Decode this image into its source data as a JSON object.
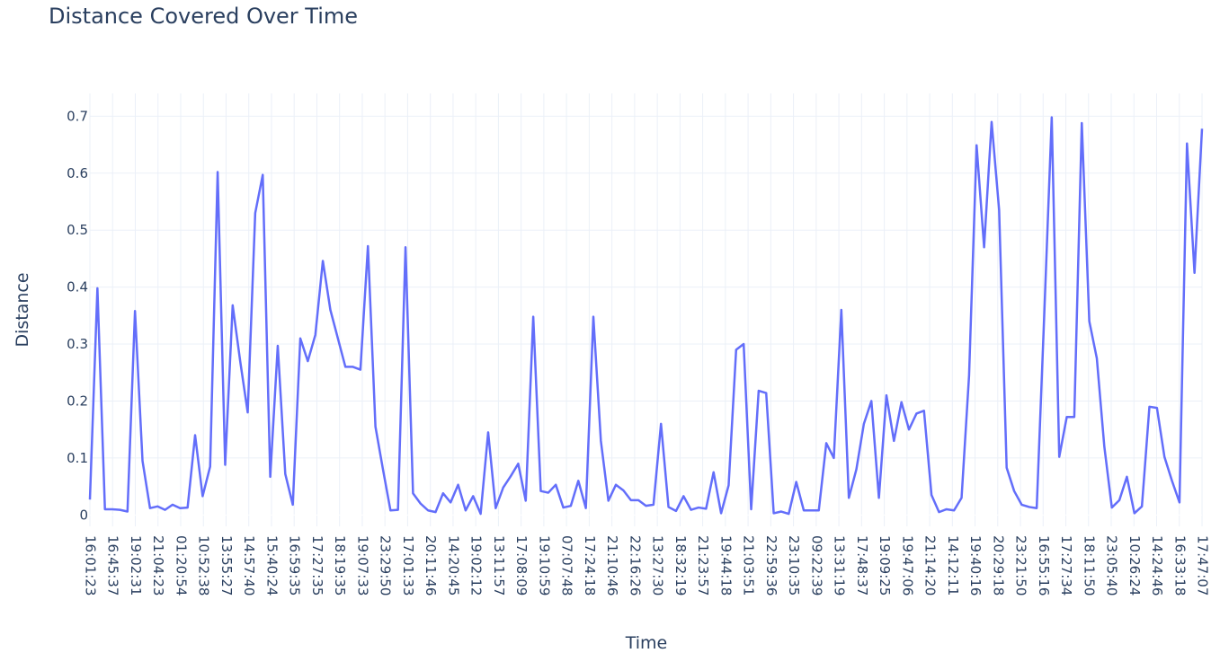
{
  "chart_data": {
    "type": "line",
    "title": "Distance Covered Over Time",
    "xlabel": "Time",
    "ylabel": "Distance",
    "ylim": [
      -0.02,
      0.74
    ],
    "yticks": [
      0,
      0.1,
      0.2,
      0.3,
      0.4,
      0.5,
      0.6,
      0.7
    ],
    "ytick_labels": [
      "0",
      "0.1",
      "0.2",
      "0.3",
      "0.4",
      "0.5",
      "0.6",
      "0.7"
    ],
    "grid": true,
    "colors": {
      "line": "#636efa",
      "grid": "#ebf0f8",
      "text": "#2a3f5f"
    },
    "x_tick_labels": [
      "16:01:23",
      "16:45:37",
      "19:02:31",
      "21:04:23",
      "01:20:54",
      "10:52:38",
      "13:55:27",
      "14:57:40",
      "15:40:24",
      "16:59:35",
      "17:27:35",
      "18:19:35",
      "19:07:33",
      "23:29:50",
      "17:01:33",
      "20:11:46",
      "14:20:45",
      "19:02:12",
      "13:11:57",
      "17:08:09",
      "19:10:59",
      "07:07:48",
      "17:24:18",
      "21:10:46",
      "22:16:26",
      "13:27:30",
      "18:32:19",
      "21:23:57",
      "19:44:18",
      "21:03:51",
      "22:59:36",
      "23:10:35",
      "09:22:39",
      "13:31:19",
      "17:48:37",
      "19:09:25",
      "19:47:06",
      "21:14:20",
      "14:12:11",
      "19:40:16",
      "20:29:18",
      "23:21:50",
      "16:55:16",
      "17:27:34",
      "18:11:50",
      "23:05:40",
      "10:26:24",
      "14:24:46",
      "16:33:18",
      "17:47:07"
    ],
    "series": [
      {
        "values": [
          0.027,
          0.398,
          0.01,
          0.01,
          0.009,
          0.006,
          0.358,
          0.095,
          0.012,
          0.015,
          0.009,
          0.018,
          0.012,
          0.013,
          0.14,
          0.033,
          0.085,
          0.602,
          0.088,
          0.368,
          0.27,
          0.18,
          0.53,
          0.597,
          0.067,
          0.297,
          0.072,
          0.018,
          0.31,
          0.27,
          0.316,
          0.446,
          0.36,
          0.31,
          0.26,
          0.26,
          0.255,
          0.472,
          0.155,
          0.08,
          0.008,
          0.009,
          0.47,
          0.038,
          0.02,
          0.008,
          0.005,
          0.038,
          0.022,
          0.053,
          0.008,
          0.033,
          0.002,
          0.145,
          0.012,
          0.048,
          0.068,
          0.09,
          0.025,
          0.348,
          0.042,
          0.039,
          0.053,
          0.013,
          0.016,
          0.06,
          0.012,
          0.348,
          0.13,
          0.025,
          0.053,
          0.043,
          0.026,
          0.026,
          0.016,
          0.018,
          0.16,
          0.014,
          0.007,
          0.033,
          0.009,
          0.013,
          0.011,
          0.075,
          0.003,
          0.052,
          0.29,
          0.3,
          0.01,
          0.218,
          0.214,
          0.003,
          0.006,
          0.002,
          0.058,
          0.008,
          0.008,
          0.008,
          0.126,
          0.1,
          0.36,
          0.03,
          0.08,
          0.16,
          0.2,
          0.03,
          0.21,
          0.13,
          0.198,
          0.15,
          0.178,
          0.183,
          0.035,
          0.005,
          0.01,
          0.008,
          0.03,
          0.245,
          0.649,
          0.47,
          0.69,
          0.535,
          0.083,
          0.042,
          0.018,
          0.014,
          0.012,
          0.35,
          0.698,
          0.102,
          0.172,
          0.172,
          0.688,
          0.34,
          0.275,
          0.12,
          0.013,
          0.026,
          0.067,
          0.003,
          0.015,
          0.19,
          0.188,
          0.102,
          0.06,
          0.022,
          0.652,
          0.425,
          0.678
        ]
      }
    ]
  }
}
